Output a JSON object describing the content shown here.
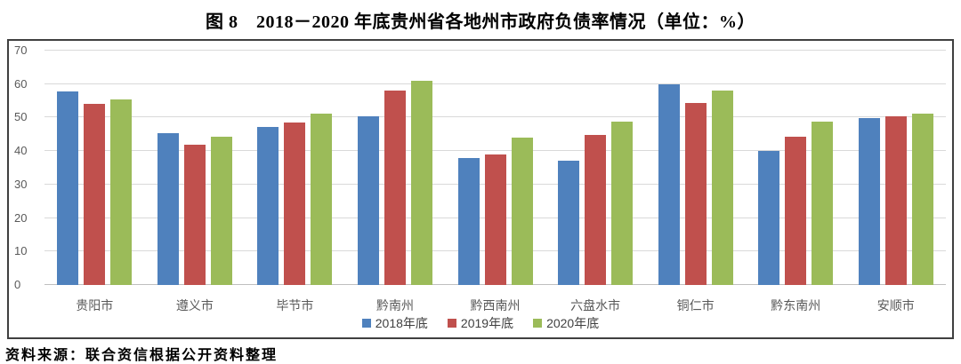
{
  "page": {
    "title": "图 8　2018－2020 年底贵州省各地州市政府负债率情况（单位：%）",
    "source": "资料来源：联合资信根据公开资料整理"
  },
  "chart_data": {
    "type": "bar",
    "title": "图 8　2018－2020 年底贵州省各地州市政府负债率情况（单位：%）",
    "categories": [
      "贵阳市",
      "遵义市",
      "毕节市",
      "黔南州",
      "黔西南州",
      "六盘水市",
      "铜仁市",
      "黔东南州",
      "安顺市"
    ],
    "series": [
      {
        "name": "2018年底",
        "color": "#4F81BD",
        "values": [
          57.8,
          45.3,
          47.2,
          50.4,
          38.0,
          37.0,
          60.0,
          40.0,
          49.8
        ]
      },
      {
        "name": "2019年底",
        "color": "#C0504D",
        "values": [
          54.0,
          41.8,
          48.5,
          58.0,
          39.0,
          44.9,
          54.3,
          44.4,
          50.4
        ]
      },
      {
        "name": "2020年底",
        "color": "#9BBB59",
        "values": [
          55.4,
          44.3,
          51.1,
          61.0,
          44.0,
          48.8,
          58.0,
          48.7,
          51.1
        ]
      }
    ],
    "xlabel": "",
    "ylabel": "",
    "ylim": [
      0,
      70
    ],
    "ytick_step": 10,
    "grid": true,
    "legend_position": "bottom"
  },
  "style": {
    "grid_color": "#d9d9d9",
    "baseline_color": "#bfbfbf",
    "axis_text_color": "#595959",
    "box_border_color": "#404040"
  }
}
